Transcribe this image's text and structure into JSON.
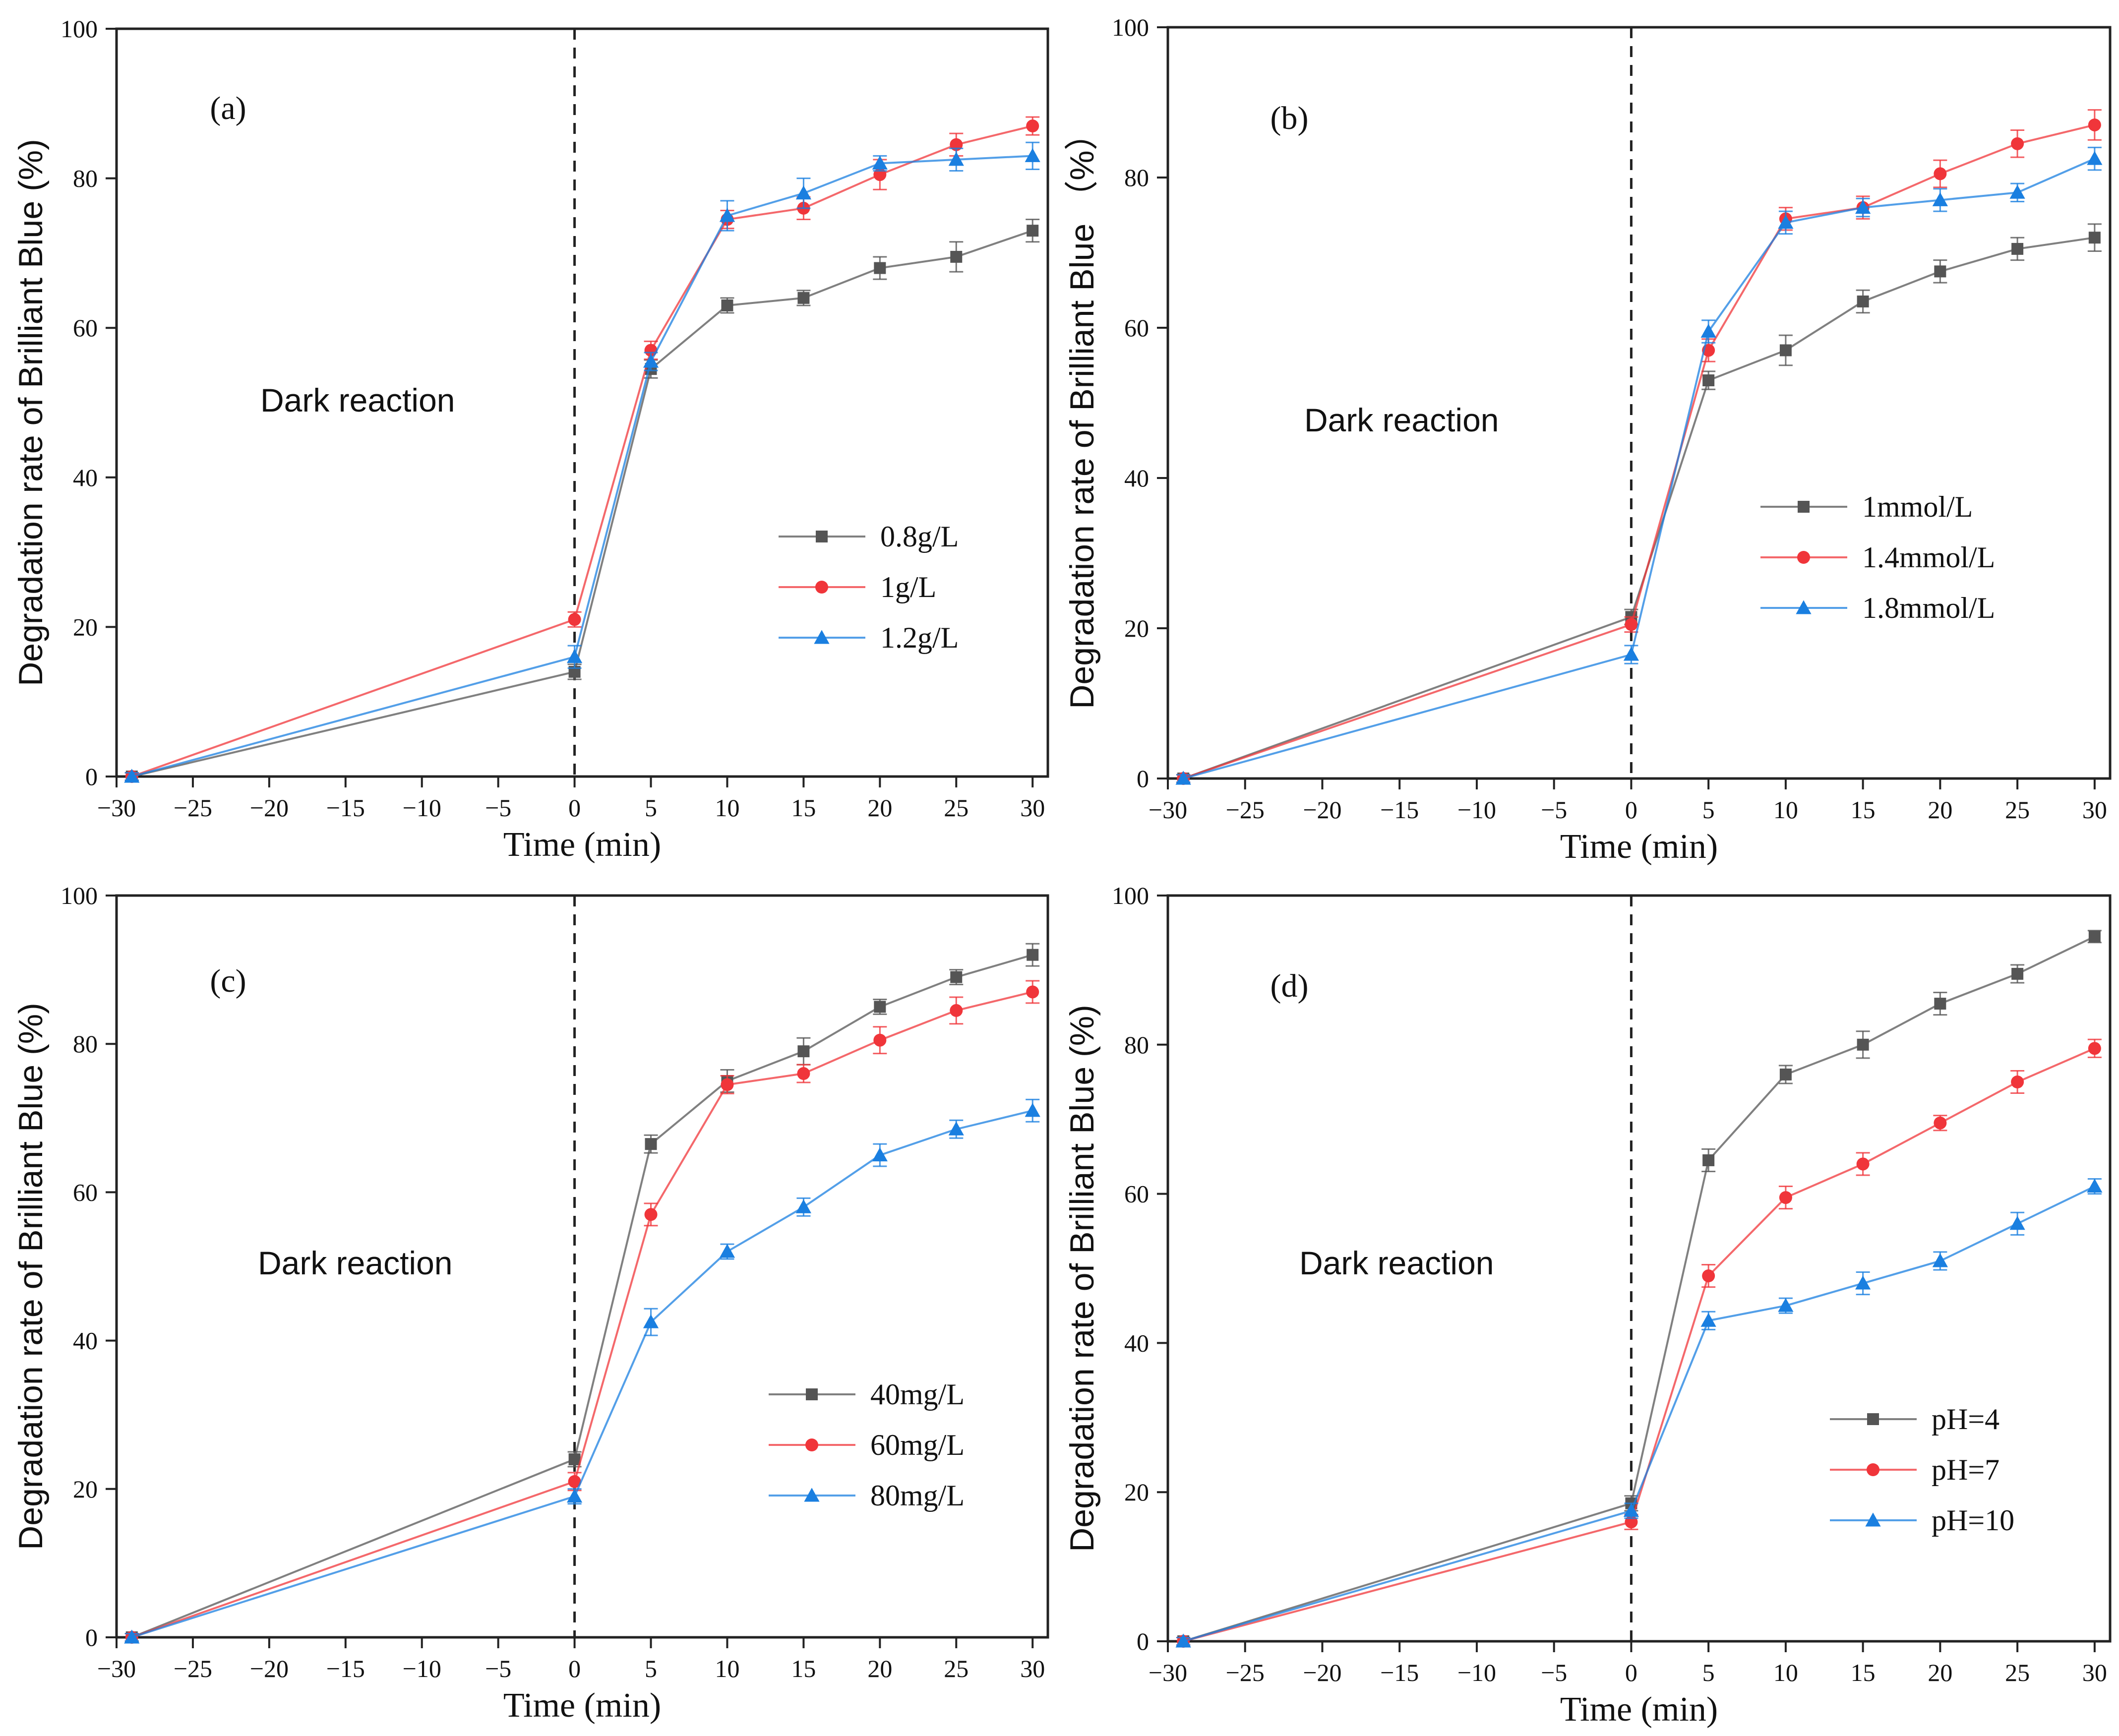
{
  "chart_data": [
    {
      "type": "line",
      "panel_label": "(a)",
      "annotation": "Dark reaction",
      "xlabel": "Time (min)",
      "ylabel": "Degradation rate of Brilliant Blue (%)",
      "xlim": [
        -30,
        31
      ],
      "ylim": [
        0,
        100
      ],
      "x_ticks": [
        -30,
        -25,
        -20,
        -15,
        -10,
        -5,
        0,
        5,
        10,
        15,
        20,
        25,
        30
      ],
      "x_tick_labels": [
        "−30",
        "−25",
        "−20",
        "−15",
        "−10",
        "−5",
        "0",
        "5",
        "10",
        "15",
        "20",
        "25",
        "30"
      ],
      "y_ticks": [
        0,
        20,
        40,
        60,
        80,
        100
      ],
      "y_tick_labels": [
        "0",
        "20",
        "40",
        "60",
        "80",
        "100"
      ],
      "vline_x": 0,
      "legend_position": "center-right",
      "x": [
        -29,
        0,
        5,
        10,
        15,
        20,
        25,
        30
      ],
      "series": [
        {
          "name": "0.8g/L",
          "color": "#555555",
          "marker": "square",
          "values": [
            0,
            14,
            54.5,
            63,
            64,
            68,
            69.5,
            73
          ],
          "errors": [
            0.5,
            1,
            1.2,
            1,
            1,
            1.5,
            2,
            1.5
          ]
        },
        {
          "name": "1g/L",
          "color": "#f0353a",
          "marker": "circle",
          "values": [
            0,
            21,
            57,
            74.5,
            76,
            80.5,
            84.5,
            87
          ],
          "errors": [
            0.5,
            1,
            1.2,
            1.2,
            1.5,
            2,
            1.5,
            1.2
          ]
        },
        {
          "name": "1.2g/L",
          "color": "#1a7fe0",
          "marker": "triangle",
          "values": [
            0,
            16,
            55.5,
            75,
            78,
            82,
            82.5,
            83
          ],
          "errors": [
            0.5,
            1.5,
            1.2,
            2,
            2,
            1,
            1.5,
            1.8
          ]
        }
      ]
    },
    {
      "type": "line",
      "panel_label": "(b)",
      "annotation": "Dark reaction",
      "xlabel": "Time (min)",
      "ylabel": "Degradation rate of Brilliant Blue （%）",
      "xlim": [
        -30,
        31
      ],
      "ylim": [
        0,
        100
      ],
      "x_ticks": [
        -30,
        -25,
        -20,
        -15,
        -10,
        -5,
        0,
        5,
        10,
        15,
        20,
        25,
        30
      ],
      "x_tick_labels": [
        "−30",
        "−25",
        "−20",
        "−15",
        "−10",
        "−5",
        "0",
        "5",
        "10",
        "15",
        "20",
        "25",
        "30"
      ],
      "y_ticks": [
        0,
        20,
        40,
        60,
        80,
        100
      ],
      "y_tick_labels": [
        "0",
        "20",
        "40",
        "60",
        "80",
        "100"
      ],
      "vline_x": 0,
      "legend_position": "center-right",
      "x": [
        -29,
        0,
        5,
        10,
        15,
        20,
        25,
        30
      ],
      "series": [
        {
          "name": "1mmol/L",
          "color": "#555555",
          "marker": "square",
          "values": [
            0,
            21.5,
            53,
            57,
            63.5,
            67.5,
            70.5,
            72
          ],
          "errors": [
            0.5,
            1,
            1.2,
            2,
            1.5,
            1.5,
            1.5,
            1.8
          ]
        },
        {
          "name": "1.4mmol/L",
          "color": "#f0353a",
          "marker": "circle",
          "values": [
            0,
            20.5,
            57,
            74.5,
            76,
            80.5,
            84.5,
            87
          ],
          "errors": [
            0.5,
            1,
            1.5,
            1.5,
            1.5,
            1.8,
            1.8,
            2
          ]
        },
        {
          "name": "1.8mmol/L",
          "color": "#1a7fe0",
          "marker": "triangle",
          "values": [
            0,
            16.5,
            59.5,
            74,
            76,
            77,
            78,
            82.5
          ],
          "errors": [
            0.5,
            1.2,
            1.5,
            1.5,
            1.2,
            1.5,
            1.2,
            1.5
          ]
        }
      ]
    },
    {
      "type": "line",
      "panel_label": "(c)",
      "annotation": "Dark reaction",
      "xlabel": "Time (min)",
      "ylabel": "Degradation rate of Brilliant Blue (%)",
      "xlim": [
        -30,
        31
      ],
      "ylim": [
        0,
        100
      ],
      "x_ticks": [
        -30,
        -25,
        -20,
        -15,
        -10,
        -5,
        0,
        5,
        10,
        15,
        20,
        25,
        30
      ],
      "x_tick_labels": [
        "−30",
        "−25",
        "−20",
        "−15",
        "−10",
        "−5",
        "0",
        "5",
        "10",
        "15",
        "20",
        "25",
        "30"
      ],
      "y_ticks": [
        0,
        20,
        40,
        60,
        80,
        100
      ],
      "y_tick_labels": [
        "0",
        "20",
        "40",
        "60",
        "80",
        "100"
      ],
      "vline_x": 0,
      "legend_position": "center-right",
      "x": [
        -29,
        0,
        5,
        10,
        15,
        20,
        25,
        30
      ],
      "series": [
        {
          "name": "40mg/L",
          "color": "#555555",
          "marker": "square",
          "values": [
            0,
            24,
            66.5,
            75,
            79,
            85,
            89,
            92
          ],
          "errors": [
            0.5,
            1,
            1.2,
            1.5,
            1.8,
            1,
            1,
            1.5
          ]
        },
        {
          "name": "60mg/L",
          "color": "#f0353a",
          "marker": "circle",
          "values": [
            0,
            21,
            57,
            74.5,
            76,
            80.5,
            84.5,
            87
          ],
          "errors": [
            0.5,
            1.2,
            1.5,
            1.2,
            1.2,
            1.8,
            1.8,
            1.5
          ]
        },
        {
          "name": "80mg/L",
          "color": "#1a7fe0",
          "marker": "triangle",
          "values": [
            0,
            19,
            42.5,
            52,
            58,
            65,
            68.5,
            71
          ],
          "errors": [
            0.5,
            1,
            1.8,
            1,
            1.2,
            1.5,
            1.2,
            1.5
          ]
        }
      ]
    },
    {
      "type": "line",
      "panel_label": "(d)",
      "annotation": "Dark reaction",
      "xlabel": "Time (min)",
      "ylabel": "Degradation rate of Brilliant Blue (%)",
      "xlim": [
        -30,
        31
      ],
      "ylim": [
        0,
        100
      ],
      "x_ticks": [
        -30,
        -25,
        -20,
        -15,
        -10,
        -5,
        0,
        5,
        10,
        15,
        20,
        25,
        30
      ],
      "x_tick_labels": [
        "−30",
        "−25",
        "−20",
        "−15",
        "−10",
        "−5",
        "0",
        "5",
        "10",
        "15",
        "20",
        "25",
        "30"
      ],
      "y_ticks": [
        0,
        20,
        40,
        60,
        80,
        100
      ],
      "y_tick_labels": [
        "0",
        "20",
        "40",
        "60",
        "80",
        "100"
      ],
      "vline_x": 0,
      "legend_position": "bottom-right",
      "x": [
        -29,
        0,
        5,
        10,
        15,
        20,
        25,
        30
      ],
      "series": [
        {
          "name": "pH=4",
          "color": "#555555",
          "marker": "square",
          "values": [
            0,
            18.5,
            64.5,
            76,
            80,
            85.5,
            89.5,
            94.5
          ],
          "errors": [
            0.5,
            1,
            1.5,
            1.2,
            1.8,
            1.5,
            1.2,
            0.8
          ]
        },
        {
          "name": "pH=7",
          "color": "#f0353a",
          "marker": "circle",
          "values": [
            0,
            16,
            49,
            59.5,
            64,
            69.5,
            75,
            79.5
          ],
          "errors": [
            0.5,
            1,
            1.5,
            1.5,
            1.5,
            1,
            1.5,
            1.2
          ]
        },
        {
          "name": "pH=10",
          "color": "#1a7fe0",
          "marker": "triangle",
          "values": [
            0,
            17.5,
            43,
            45,
            48,
            51,
            56,
            61
          ],
          "errors": [
            0.5,
            1,
            1.2,
            1,
            1.5,
            1.2,
            1.5,
            1
          ]
        }
      ]
    }
  ]
}
